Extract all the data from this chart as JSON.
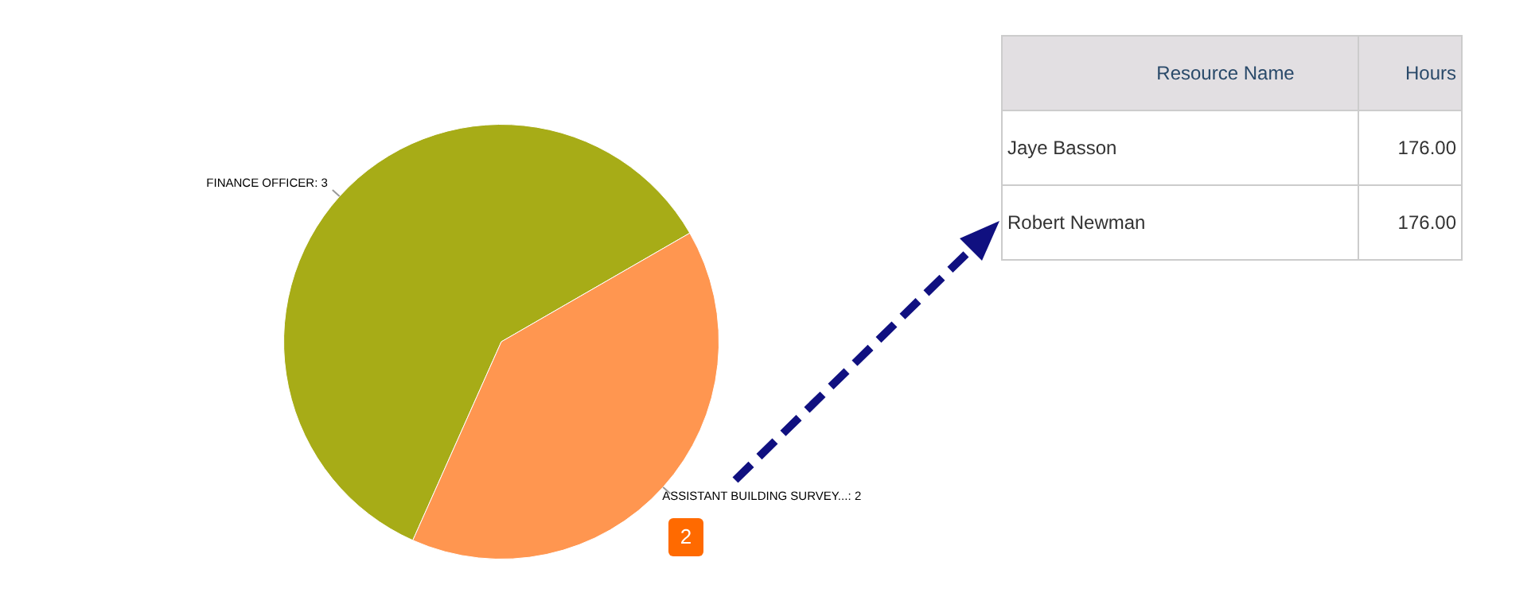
{
  "chart_data": {
    "type": "pie",
    "categories": [
      "FINANCE OFFICER",
      "ASSISTANT BUILDING SURVEY..."
    ],
    "values": [
      3,
      2
    ],
    "colors": [
      "#a7ac17",
      "#ff9650"
    ],
    "legend": false,
    "value_labels": [
      ": 3",
      ": 2"
    ],
    "annotations": [
      "Resource Name",
      "Hours",
      "Jaye Basson",
      "176.00",
      "Robert Newman",
      "176.00",
      "2"
    ]
  }
}
